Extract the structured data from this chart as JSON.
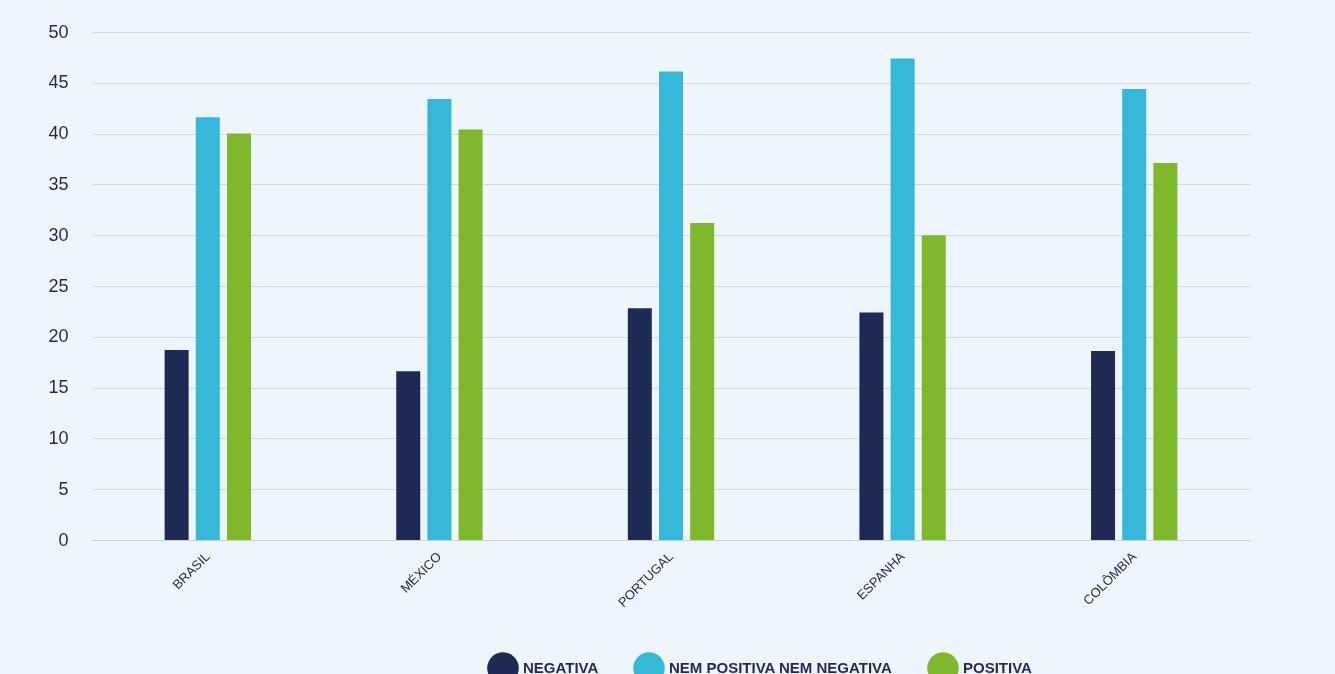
{
  "chart_data": {
    "type": "bar",
    "categories": [
      "BRASIL",
      "MÉXICO",
      "PORTUGAL",
      "ESPANHA",
      "COLÔMBIA"
    ],
    "series": [
      {
        "name": "NEGATIVA",
        "color": "#1f2a54",
        "values": [
          18.7,
          16.6,
          22.8,
          22.4,
          18.6
        ]
      },
      {
        "name": "NEM POSITIVA NEM NEGATIVA",
        "color": "#36b9d8",
        "values": [
          41.6,
          43.4,
          46.1,
          47.4,
          44.4
        ]
      },
      {
        "name": "POSITIVA",
        "color": "#7fb82d",
        "values": [
          40.0,
          40.4,
          31.2,
          30.0,
          37.1
        ]
      }
    ],
    "ylim": [
      0,
      50
    ],
    "yticks": [
      0,
      5,
      10,
      15,
      20,
      25,
      30,
      35,
      40,
      45,
      50
    ],
    "grid": "y",
    "legend": "bottom"
  }
}
